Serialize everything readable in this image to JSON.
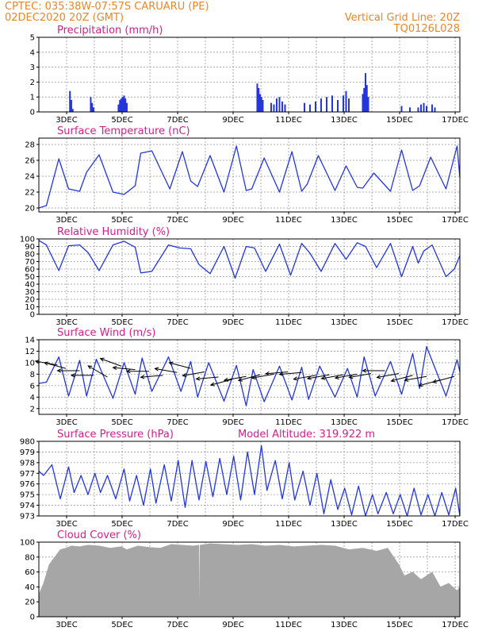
{
  "header": {
    "line1": "CPTEC:   035:38W-07:57S   CARUARU (PE)",
    "line2": "02DEC2020 20Z (GMT)",
    "grid_note": "Vertical Grid Line: 20Z",
    "code": "TQ0126L028"
  },
  "colors": {
    "header": "#e8862a",
    "title": "#d0208a",
    "series": "#2436d8",
    "cloud": "#a6a6a6",
    "arrow": "#000000"
  },
  "chart_data": [
    {
      "type": "bar",
      "title": "Precipitation (mm/h)",
      "x_tick_labels": [
        "3DEC",
        "5DEC",
        "7DEC",
        "9DEC",
        "11DEC",
        "13DEC",
        "15DEC",
        "17DEC"
      ],
      "ylim": [
        0,
        5
      ],
      "yticks": [
        0,
        1,
        2,
        3,
        4,
        5
      ],
      "grid": true,
      "x_unit": "days since 02DEC2020 00Z",
      "x": [
        2.95,
        3.0,
        3.05,
        3.7,
        3.75,
        3.8,
        4.7,
        4.75,
        4.8,
        4.85,
        4.9,
        4.95,
        5.0,
        9.7,
        9.75,
        9.8,
        9.85,
        9.9,
        10.2,
        10.3,
        10.4,
        10.5,
        10.6,
        10.7,
        11.4,
        11.6,
        11.8,
        12.0,
        12.2,
        12.4,
        12.6,
        12.8,
        12.9,
        13.0,
        13.5,
        13.55,
        13.6,
        13.65,
        13.7,
        14.9,
        15.2,
        15.5,
        15.6,
        15.7,
        15.8,
        16.0,
        16.1
      ],
      "values": [
        1.4,
        0.8,
        0.2,
        1.0,
        0.6,
        0.3,
        0.5,
        0.8,
        0.9,
        1.0,
        1.1,
        0.9,
        0.6,
        1.9,
        1.6,
        1.2,
        1.0,
        0.8,
        0.6,
        0.5,
        0.9,
        1.0,
        0.7,
        0.5,
        0.6,
        0.5,
        0.7,
        0.9,
        1.0,
        1.1,
        0.8,
        1.1,
        1.4,
        0.9,
        1.2,
        1.6,
        2.6,
        1.8,
        1.0,
        0.4,
        0.3,
        0.3,
        0.5,
        0.6,
        0.4,
        0.5,
        0.3
      ]
    },
    {
      "type": "line",
      "title": "Surface Temperature (nC)",
      "x_tick_labels": [
        "3DEC",
        "5DEC",
        "7DEC",
        "9DEC",
        "11DEC",
        "13DEC",
        "15DEC",
        "17DEC"
      ],
      "ylim": [
        19.5,
        28.8
      ],
      "yticks": [
        20,
        22,
        24,
        26,
        28
      ],
      "grid": true,
      "x_unit": "days since 02DEC2020 00Z",
      "x": [
        1.83,
        2.1,
        2.55,
        2.9,
        3.3,
        3.55,
        4.0,
        4.5,
        4.9,
        5.3,
        5.5,
        5.9,
        6.55,
        7.0,
        7.3,
        7.55,
        8.0,
        8.5,
        8.95,
        9.3,
        9.5,
        9.95,
        10.5,
        10.95,
        11.3,
        11.5,
        11.9,
        12.5,
        12.9,
        13.3,
        13.5,
        13.9,
        14.5,
        14.9,
        15.3,
        15.55,
        15.95,
        16.5,
        16.9,
        17.0
      ],
      "values": [
        20.0,
        20.3,
        26.2,
        22.4,
        22.1,
        24.5,
        26.7,
        22.0,
        21.7,
        22.8,
        26.9,
        27.2,
        22.4,
        27.1,
        23.4,
        22.7,
        26.6,
        22.0,
        27.8,
        22.2,
        22.4,
        26.3,
        22.0,
        27.1,
        22.1,
        23.0,
        26.6,
        22.2,
        25.3,
        22.6,
        22.5,
        24.4,
        22.1,
        27.3,
        22.2,
        22.8,
        26.4,
        22.4,
        27.8,
        23.8
      ]
    },
    {
      "type": "line",
      "title": "Relative Humidity (%)",
      "x_tick_labels": [
        "3DEC",
        "5DEC",
        "7DEC",
        "9DEC",
        "11DEC",
        "13DEC",
        "15DEC",
        "17DEC"
      ],
      "ylim": [
        0,
        100
      ],
      "yticks": [
        0,
        10,
        20,
        30,
        40,
        50,
        60,
        70,
        80,
        90,
        100
      ],
      "grid": true,
      "x_unit": "days since 02DEC2020 00Z",
      "x": [
        1.83,
        2.1,
        2.55,
        2.9,
        3.3,
        3.6,
        4.0,
        4.5,
        4.9,
        5.3,
        5.5,
        5.9,
        6.5,
        6.9,
        7.3,
        7.6,
        8.0,
        8.5,
        8.9,
        9.3,
        9.6,
        10.0,
        10.5,
        10.9,
        11.3,
        11.6,
        12.0,
        12.5,
        12.9,
        13.3,
        13.6,
        14.0,
        14.5,
        14.9,
        15.3,
        15.5,
        15.7,
        16.0,
        16.5,
        16.8,
        17.0
      ],
      "values": [
        98,
        92,
        58,
        91,
        92,
        82,
        58,
        92,
        97,
        89,
        55,
        57,
        92,
        88,
        87,
        66,
        54,
        90,
        48,
        90,
        88,
        57,
        93,
        52,
        94,
        81,
        57,
        94,
        73,
        95,
        90,
        62,
        94,
        50,
        90,
        68,
        84,
        92,
        50,
        60,
        78
      ]
    },
    {
      "type": "line",
      "title": "Surface Wind (m/s)",
      "x_tick_labels": [
        "3DEC",
        "5DEC",
        "7DEC",
        "9DEC",
        "11DEC",
        "13DEC",
        "15DEC",
        "17DEC"
      ],
      "ylim": [
        1,
        14
      ],
      "yticks": [
        2,
        4,
        6,
        8,
        10,
        12,
        14
      ],
      "grid": true,
      "x_unit": "days since 02DEC2020 00Z",
      "x": [
        1.83,
        2.1,
        2.55,
        2.9,
        3.3,
        3.55,
        3.9,
        4.5,
        4.9,
        5.3,
        5.55,
        5.9,
        6.5,
        6.95,
        7.3,
        7.55,
        7.95,
        8.5,
        8.95,
        9.3,
        9.55,
        9.95,
        10.5,
        10.95,
        11.3,
        11.55,
        11.95,
        12.5,
        12.95,
        13.3,
        13.55,
        13.95,
        14.5,
        14.9,
        15.3,
        15.55,
        15.8,
        16.5,
        16.9,
        17.0
      ],
      "values": [
        6.4,
        6.6,
        11.0,
        4.2,
        10.4,
        4.2,
        10.6,
        3.8,
        10.0,
        4.5,
        10.8,
        5.0,
        11.0,
        5.0,
        10.2,
        4.0,
        10.0,
        3.3,
        9.5,
        2.5,
        8.8,
        3.2,
        9.4,
        3.5,
        9.2,
        3.6,
        9.4,
        4.0,
        9.0,
        4.0,
        11.0,
        4.2,
        10.2,
        4.5,
        11.6,
        5.5,
        12.8,
        4.2,
        10.5,
        8.4
      ],
      "arrows": {
        "type": "vector",
        "x": [
          2.5,
          2.8,
          3.3,
          3.8,
          4.3,
          4.8,
          5.3,
          5.8,
          6.3,
          6.8,
          7.3,
          7.8,
          8.3,
          8.8,
          9.3,
          9.8,
          10.3,
          10.8,
          11.3,
          11.8,
          12.3,
          12.8,
          13.3,
          13.8,
          14.3,
          14.8,
          15.3,
          15.8,
          16.3,
          16.8
        ],
        "speed": [
          9.6,
          9.0,
          8.6,
          7.8,
          7.5,
          9.4,
          8.8,
          8.5,
          7.8,
          8.3,
          9.0,
          8.4,
          7.5,
          7.1,
          7.6,
          7.9,
          8.0,
          8.4,
          8.3,
          7.8,
          7.9,
          7.9,
          8.0,
          8.1,
          8.6,
          8.1,
          7.8,
          7.6,
          7.0,
          7.6
        ],
        "dir_deg_from": [
          100,
          105,
          90,
          90,
          120,
          110,
          95,
          90,
          85,
          100,
          105,
          80,
          85,
          75,
          80,
          75,
          80,
          85,
          85,
          80,
          80,
          80,
          80,
          80,
          90,
          80,
          75,
          80,
          75,
          75
        ]
      }
    },
    {
      "type": "line",
      "title": "Surface Pressure (hPa)",
      "subtitle": "Model Altitude: 319.922 m",
      "x_tick_labels": [
        "3DEC",
        "5DEC",
        "7DEC",
        "9DEC",
        "11DEC",
        "13DEC",
        "15DEC",
        "17DEC"
      ],
      "ylim": [
        973,
        980
      ],
      "yticks": [
        973,
        974,
        975,
        976,
        977,
        978,
        979,
        980
      ],
      "grid": true,
      "x_unit": "days since 02DEC2020 00Z",
      "x": [
        1.83,
        2.0,
        2.3,
        2.6,
        2.9,
        3.1,
        3.35,
        3.6,
        3.85,
        4.05,
        4.3,
        4.6,
        4.9,
        5.1,
        5.35,
        5.6,
        5.85,
        6.05,
        6.35,
        6.6,
        6.85,
        7.1,
        7.35,
        7.6,
        7.85,
        8.1,
        8.35,
        8.6,
        8.85,
        9.1,
        9.35,
        9.6,
        9.85,
        10.05,
        10.35,
        10.6,
        10.85,
        11.05,
        11.35,
        11.6,
        11.85,
        12.1,
        12.35,
        12.6,
        12.85,
        13.1,
        13.35,
        13.6,
        13.85,
        14.05,
        14.35,
        14.6,
        14.85,
        15.1,
        15.35,
        15.6,
        15.85,
        16.1,
        16.35,
        16.6,
        16.85,
        17.0
      ],
      "values": [
        977.2,
        976.8,
        977.8,
        974.6,
        977.6,
        975.2,
        976.8,
        975.0,
        977.0,
        975.2,
        976.8,
        974.6,
        977.4,
        974.4,
        976.8,
        974.0,
        977.4,
        974.2,
        977.8,
        974.4,
        978.2,
        973.8,
        978.2,
        974.5,
        978.1,
        974.8,
        978.4,
        975.0,
        978.6,
        974.5,
        979.0,
        975.0,
        979.6,
        975.4,
        978.2,
        974.6,
        978.0,
        974.5,
        977.2,
        974.0,
        977.0,
        973.2,
        976.4,
        973.6,
        975.6,
        973.1,
        975.8,
        973.0,
        975.0,
        973.2,
        975.2,
        973.2,
        975.0,
        973.0,
        975.6,
        973.1,
        975.0,
        973.0,
        975.2,
        973.1,
        975.6,
        973.0
      ]
    },
    {
      "type": "area",
      "title": "Cloud Cover (%)",
      "x_tick_labels": [
        "3DEC",
        "5DEC",
        "7DEC",
        "9DEC",
        "11DEC",
        "13DEC",
        "15DEC",
        "17DEC"
      ],
      "ylim": [
        0,
        100
      ],
      "yticks": [
        0,
        20,
        40,
        60,
        80,
        100
      ],
      "grid": true,
      "x_unit": "days since 02DEC2020 00Z",
      "x": [
        1.83,
        2.0,
        2.2,
        2.4,
        2.6,
        2.8,
        3.0,
        3.3,
        3.6,
        4.0,
        4.4,
        4.8,
        5.0,
        5.4,
        5.8,
        6.2,
        6.6,
        7.0,
        7.4,
        7.6,
        7.62,
        7.64,
        8.0,
        8.5,
        9.0,
        9.5,
        10.0,
        10.5,
        11.0,
        11.5,
        12.0,
        12.5,
        13.0,
        13.5,
        14.0,
        14.4,
        14.8,
        15.0,
        15.3,
        15.6,
        16.0,
        16.3,
        16.6,
        16.9,
        17.0
      ],
      "values": [
        30,
        45,
        70,
        80,
        90,
        92,
        95,
        94,
        96,
        95,
        92,
        94,
        90,
        95,
        93,
        92,
        97,
        96,
        95,
        96,
        0,
        96,
        98,
        97,
        96,
        97,
        95,
        96,
        94,
        95,
        96,
        95,
        90,
        92,
        88,
        92,
        70,
        55,
        60,
        50,
        60,
        40,
        45,
        35,
        40
      ]
    }
  ]
}
